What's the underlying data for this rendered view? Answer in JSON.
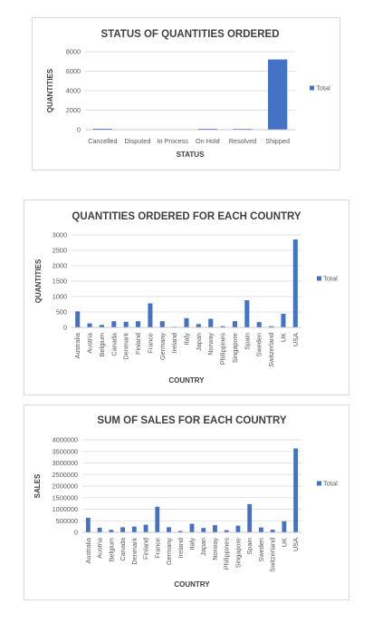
{
  "chart_data": [
    {
      "type": "bar",
      "title": "STATUS OF QUANTITIES ORDERED",
      "xlabel": "STATUS",
      "ylabel": "QUANTITIES",
      "categories": [
        "Cancelled",
        "Disputed",
        "In Process",
        "On Hold",
        "Resolved",
        "Shipped"
      ],
      "series": [
        {
          "name": "Total",
          "values": [
            100,
            0,
            0,
            90,
            80,
            7200
          ]
        }
      ],
      "yticks": [
        "0",
        "2000",
        "4000",
        "6000",
        "8000"
      ],
      "ylim": [
        0,
        8000
      ],
      "grid": true,
      "legend": "right",
      "color": "#4472c4"
    },
    {
      "type": "bar",
      "title": "QUANTITIES ORDERED FOR EACH COUNTRY",
      "xlabel": "COUNTRY",
      "ylabel": "QUANTITIES",
      "categories": [
        "Australia",
        "Austria",
        "Belgium",
        "Canada",
        "Denmark",
        "Finland",
        "France",
        "Germany",
        "Ireland",
        "Italy",
        "Japan",
        "Norway",
        "Philippines",
        "Singapore",
        "Spain",
        "Sweden",
        "Switzerland",
        "UK",
        "USA"
      ],
      "series": [
        {
          "name": "Total",
          "values": [
            520,
            130,
            80,
            200,
            180,
            200,
            780,
            200,
            20,
            300,
            110,
            280,
            40,
            200,
            880,
            170,
            40,
            440,
            2850
          ]
        }
      ],
      "yticks": [
        "0",
        "500",
        "1000",
        "1500",
        "2000",
        "2500",
        "3000"
      ],
      "ylim": [
        0,
        3000
      ],
      "grid": true,
      "legend": "right",
      "color": "#4472c4"
    },
    {
      "type": "bar",
      "title": "SUM OF SALES FOR EACH COUNTRY",
      "xlabel": "COUNTRY",
      "ylabel": "SALES",
      "categories": [
        "Australia",
        "Austria",
        "Belgium",
        "Canada",
        "Denmark",
        "Finland",
        "France",
        "Germany",
        "Ireland",
        "Italy",
        "Japan",
        "Norway",
        "Philippines",
        "Singapore",
        "Spain",
        "Sweden",
        "Switzerland",
        "UK",
        "USA"
      ],
      "series": [
        {
          "name": "Total",
          "values": [
            630000,
            200000,
            110000,
            220000,
            250000,
            330000,
            1110000,
            220000,
            60000,
            370000,
            190000,
            310000,
            95000,
            290000,
            1220000,
            210000,
            115000,
            480000,
            3630000
          ]
        }
      ],
      "yticks": [
        "0",
        "500000",
        "1000000",
        "1500000",
        "2000000",
        "2500000",
        "3000000",
        "3500000",
        "4000000"
      ],
      "ylim": [
        0,
        4000000
      ],
      "grid": true,
      "legend": "right",
      "color": "#4472c4"
    }
  ]
}
